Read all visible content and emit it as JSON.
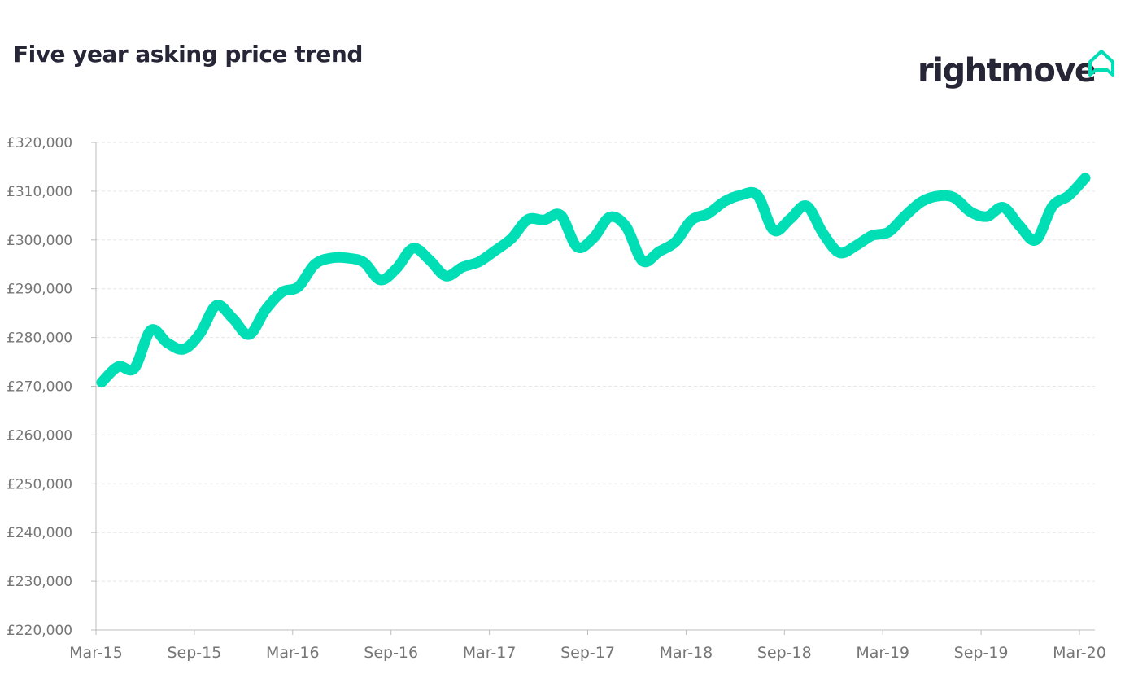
{
  "title": "Five year asking price trend",
  "logo": {
    "text": "rightmove",
    "icon": "house-outline-icon"
  },
  "colors": {
    "line": "#00DEB6",
    "title": "#262637",
    "axis_text": "#767676",
    "grid": "#e6e6e6",
    "brand_icon": "#00DEB6"
  },
  "chart_data": {
    "type": "line",
    "title": "Five year asking price trend",
    "xlabel": "",
    "ylabel": "",
    "ylim": [
      220000,
      320000
    ],
    "yticks": [
      220000,
      230000,
      240000,
      250000,
      260000,
      270000,
      280000,
      290000,
      300000,
      310000,
      320000
    ],
    "ytick_labels": [
      "£220,000",
      "£230,000",
      "£240,000",
      "£250,000",
      "£260,000",
      "£270,000",
      "£280,000",
      "£290,000",
      "£300,000",
      "£310,000",
      "£320,000"
    ],
    "xtick_labels": [
      "Mar-15",
      "Sep-15",
      "Mar-16",
      "Sep-16",
      "Mar-17",
      "Sep-17",
      "Mar-18",
      "Sep-18",
      "Mar-19",
      "Sep-19",
      "Mar-20"
    ],
    "grid": "horizontal dashed",
    "legend": "none",
    "series": [
      {
        "x": [
          "Mar-15",
          "Apr-15",
          "May-15",
          "Jun-15",
          "Jul-15",
          "Aug-15",
          "Sep-15",
          "Oct-15",
          "Nov-15",
          "Dec-15",
          "Jan-16",
          "Feb-16",
          "Mar-16",
          "Apr-16",
          "May-16",
          "Jun-16",
          "Jul-16",
          "Aug-16",
          "Sep-16",
          "Oct-16",
          "Nov-16",
          "Dec-16",
          "Jan-17",
          "Feb-17",
          "Mar-17",
          "Apr-17",
          "May-17",
          "Jun-17",
          "Jul-17",
          "Aug-17",
          "Sep-17",
          "Oct-17",
          "Nov-17",
          "Dec-17",
          "Jan-18",
          "Feb-18",
          "Mar-18",
          "Apr-18",
          "May-18",
          "Jun-18",
          "Jul-18",
          "Aug-18",
          "Sep-18",
          "Oct-18",
          "Nov-18",
          "Dec-18",
          "Jan-19",
          "Feb-19",
          "Mar-19",
          "Apr-19",
          "May-19",
          "Jun-19",
          "Jul-19",
          "Aug-19",
          "Sep-19",
          "Oct-19",
          "Nov-19",
          "Dec-19",
          "Jan-20",
          "Feb-20",
          "Mar-20"
        ],
        "values": [
          270800,
          274000,
          273700,
          281500,
          278900,
          277600,
          280800,
          286600,
          283900,
          280600,
          285700,
          289300,
          290400,
          295000,
          296300,
          296300,
          295400,
          291800,
          294200,
          298300,
          295900,
          292600,
          294400,
          295500,
          297800,
          300300,
          304200,
          304100,
          305100,
          298600,
          300400,
          304700,
          302700,
          295700,
          297600,
          299600,
          304100,
          305400,
          307900,
          309200,
          309200,
          302000,
          304300,
          307000,
          301400,
          297400,
          298800,
          300900,
          301600,
          304900,
          307800,
          309000,
          308700,
          305800,
          304800,
          306700,
          302900,
          300000,
          306900,
          309100,
          312700
        ]
      }
    ]
  }
}
